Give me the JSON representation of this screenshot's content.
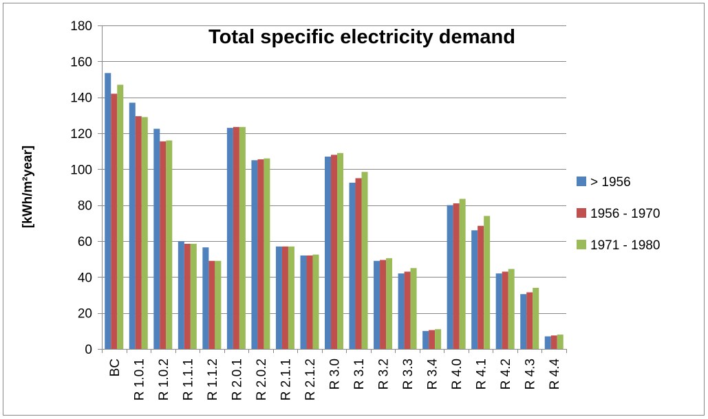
{
  "chart_data": {
    "type": "bar",
    "title": "Total specific electricity demand",
    "xlabel": "",
    "ylabel": "[kWh/m²year]",
    "ylim": [
      0,
      180
    ],
    "yticks": [
      0,
      20,
      40,
      60,
      80,
      100,
      120,
      140,
      160,
      180
    ],
    "grid": true,
    "legend_position": "right",
    "categories": [
      "BC",
      "R 1.0.1",
      "R 1.0.2",
      "R 1.1.1",
      "R 1.1.2",
      "R 2.0.1",
      "R 2.0.2",
      "R 2.1.1",
      "R 2.1.2",
      "R 3.0",
      "R 3.1",
      "R 3.2",
      "R 3.3",
      "R 3.4",
      "R 4.0",
      "R 4.1",
      "R 4.2",
      "R 4.3",
      "R 4.4"
    ],
    "series": [
      {
        "name": "> 1956",
        "color": "#4F81BD",
        "values": [
          153.5,
          137,
          122.5,
          60,
          56.5,
          123,
          105,
          57,
          52,
          107,
          92.5,
          49,
          42,
          10,
          80,
          66,
          42,
          30.5,
          7
        ]
      },
      {
        "name": "1956 - 1970",
        "color": "#C0504D",
        "values": [
          142,
          129.5,
          115.5,
          58.5,
          49,
          123.5,
          105.5,
          57,
          52,
          108,
          95,
          49.5,
          43,
          10.5,
          81,
          68.5,
          43,
          31.5,
          7.5
        ]
      },
      {
        "name": "1971 - 1980",
        "color": "#9BBB59",
        "values": [
          147,
          129,
          116,
          58.5,
          49,
          123.5,
          106,
          57,
          52.5,
          109,
          98.5,
          50.5,
          45,
          11,
          83.5,
          74,
          44.5,
          34,
          8
        ]
      }
    ]
  }
}
